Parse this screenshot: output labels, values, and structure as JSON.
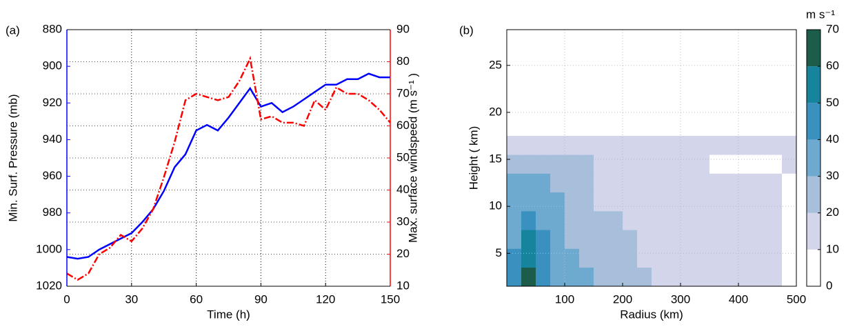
{
  "chart_data": [
    {
      "type": "line",
      "panel": "(a)",
      "xlabel": "Time (h)",
      "ylabel": "Min. Surf. Pressure (mb)",
      "y2label": "Max. surface windspeed (m s⁻¹ )",
      "x": [
        0,
        5,
        10,
        15,
        20,
        25,
        30,
        35,
        40,
        45,
        50,
        55,
        60,
        65,
        70,
        75,
        80,
        85,
        90,
        95,
        100,
        105,
        110,
        115,
        120,
        125,
        130,
        135,
        140,
        145,
        150
      ],
      "xlim": [
        0,
        150
      ],
      "xticks": [
        0,
        30,
        60,
        90,
        120,
        150
      ],
      "ylim": [
        1020,
        880
      ],
      "yticks": [
        880,
        900,
        920,
        940,
        960,
        980,
        1000,
        1020
      ],
      "y2lim": [
        10,
        90
      ],
      "y2ticks": [
        10,
        20,
        30,
        40,
        50,
        60,
        70,
        80,
        90
      ],
      "grid": true,
      "series": [
        {
          "name": "Min. Surf. Pressure",
          "color": "#0000ff",
          "axis": "y",
          "values": [
            1004,
            1005,
            1004,
            1000,
            997,
            994,
            991,
            985,
            978,
            968,
            955,
            948,
            935,
            932,
            935,
            928,
            920,
            912,
            922,
            920,
            925,
            922,
            918,
            914,
            910,
            910,
            907,
            907,
            904,
            906,
            906
          ]
        },
        {
          "name": "Max. surface windspeed",
          "color": "#ff0000",
          "axis": "y2",
          "values": [
            14,
            12,
            14,
            20,
            22,
            26,
            24,
            28,
            34,
            44,
            55,
            68,
            70,
            69,
            68,
            69,
            74,
            81,
            62,
            63,
            61,
            61,
            60,
            68,
            65,
            72,
            70,
            70,
            68,
            65,
            61
          ]
        }
      ]
    },
    {
      "type": "heatmap",
      "panel": "(b)",
      "xlabel": "Radius (km)",
      "ylabel": "Height ( km)",
      "colorbar_label": "m s⁻¹",
      "xlim": [
        0,
        500
      ],
      "xticks": [
        100,
        200,
        300,
        400,
        500
      ],
      "ylim": [
        1.5,
        28.8
      ],
      "yticks": [
        5,
        10,
        15,
        20,
        25
      ],
      "grid": true,
      "x": [
        12.5,
        37.5,
        62.5,
        87.5,
        112.5,
        137.5,
        162.5,
        187.5,
        212.5,
        237.5,
        262.5,
        287.5,
        312.5,
        337.5,
        362.5,
        387.5,
        412.5,
        437.5,
        462.5,
        487.5
      ],
      "y": [
        2.5,
        4.5,
        6.5,
        8.5,
        10.5,
        12.5,
        14.5,
        16.5
      ],
      "z": [
        [
          45,
          65,
          40,
          35,
          30,
          30,
          25,
          25,
          22,
          20,
          15,
          15,
          12,
          12,
          12,
          12,
          12,
          12,
          12,
          5
        ],
        [
          40,
          58,
          42,
          35,
          30,
          28,
          25,
          22,
          22,
          18,
          15,
          15,
          12,
          12,
          12,
          12,
          12,
          12,
          12,
          5
        ],
        [
          35,
          52,
          40,
          33,
          28,
          26,
          23,
          20,
          20,
          18,
          15,
          15,
          15,
          13,
          12,
          12,
          12,
          12,
          12,
          5
        ],
        [
          33,
          45,
          38,
          32,
          28,
          25,
          22,
          20,
          18,
          18,
          15,
          15,
          15,
          15,
          12,
          12,
          12,
          12,
          12,
          5
        ],
        [
          32,
          38,
          32,
          30,
          25,
          25,
          18,
          18,
          15,
          15,
          15,
          15,
          15,
          12,
          12,
          12,
          12,
          12,
          12,
          5
        ],
        [
          30,
          35,
          30,
          28,
          25,
          22,
          18,
          15,
          15,
          12,
          12,
          12,
          12,
          12,
          12,
          12,
          12,
          12,
          12,
          5
        ],
        [
          22,
          25,
          25,
          22,
          22,
          22,
          18,
          12,
          12,
          12,
          12,
          12,
          12,
          12,
          0,
          0,
          0,
          0,
          0,
          12
        ],
        [
          12,
          15,
          15,
          15,
          15,
          15,
          15,
          12,
          12,
          12,
          12,
          12,
          12,
          12,
          12,
          12,
          12,
          12,
          12,
          12
        ]
      ],
      "levels": [
        0,
        10,
        20,
        30,
        40,
        50,
        60,
        70
      ],
      "colors": [
        "#ffffff",
        "#d3d5ea",
        "#a8bfdc",
        "#6eaad0",
        "#3a91c0",
        "#16849c",
        "#1b5d4a"
      ]
    }
  ]
}
